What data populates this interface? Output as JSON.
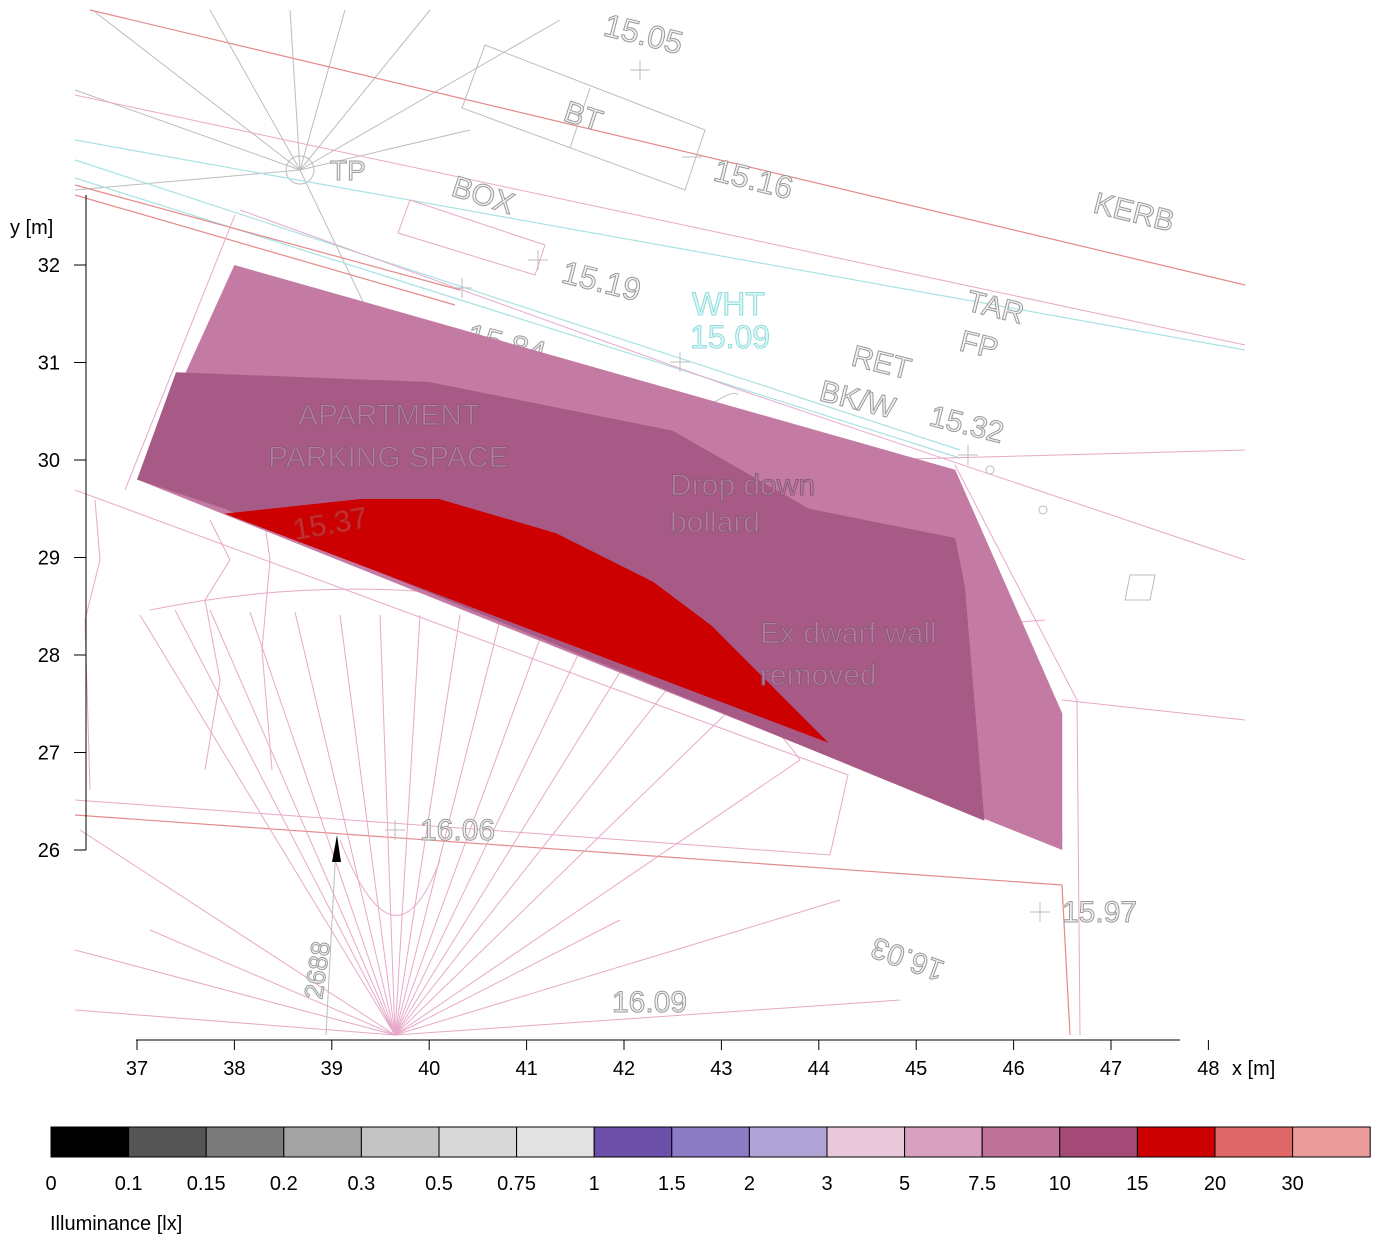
{
  "chart_data": {
    "type": "heatmap",
    "xlabel": "x [m]",
    "ylabel": "y [m]",
    "x_ticks": [
      "37",
      "38",
      "39",
      "40",
      "41",
      "42",
      "43",
      "44",
      "45",
      "46",
      "47",
      "48"
    ],
    "y_ticks": [
      "26",
      "27",
      "28",
      "29",
      "30",
      "31",
      "32"
    ],
    "xlim": [
      37,
      48
    ],
    "ylim": [
      26,
      32
    ],
    "legend": {
      "title": "Illuminance [lx]",
      "thresholds": [
        "0",
        "0.1",
        "0.15",
        "0.2",
        "0.3",
        "0.5",
        "0.75",
        "1",
        "1.5",
        "2",
        "3",
        "5",
        "7.5",
        "10",
        "15",
        "20",
        "30"
      ],
      "colors": [
        "#000000",
        "#555555",
        "#7b7b7b",
        "#a4a4a4",
        "#c4c4c4",
        "#d8d8d8",
        "#e3e3e3",
        "#6b4fa9",
        "#8a7bc4",
        "#b0a4d6",
        "#e9c9d9",
        "#d89fbf",
        "#bf7298",
        "#a54b78",
        "#cc0000",
        "#e06767",
        "#eb9a9a"
      ]
    },
    "regions": [
      {
        "band": "7.5-10",
        "color": "#c47ba3",
        "polygon": [
          [
            38.0,
            32.0
          ],
          [
            45.4,
            29.9
          ],
          [
            46.5,
            27.4
          ],
          [
            46.5,
            26.0
          ],
          [
            37.0,
            29.8
          ]
        ]
      },
      {
        "band": "10-15",
        "color": "#a85a86",
        "polygon": [
          [
            37.4,
            30.9
          ],
          [
            40.0,
            30.8
          ],
          [
            42.5,
            30.3
          ],
          [
            43.9,
            29.5
          ],
          [
            45.4,
            29.2
          ],
          [
            45.5,
            28.7
          ],
          [
            45.7,
            26.3
          ],
          [
            37.9,
            29.5
          ],
          [
            37.0,
            29.8
          ]
        ]
      },
      {
        "band": "15-20",
        "color": "#cc0000",
        "polygon": [
          [
            37.9,
            29.45
          ],
          [
            39.3,
            29.6
          ],
          [
            40.1,
            29.6
          ],
          [
            41.3,
            29.25
          ],
          [
            42.3,
            28.75
          ],
          [
            42.9,
            28.3
          ],
          [
            43.5,
            27.7
          ],
          [
            44.1,
            27.1
          ]
        ]
      }
    ],
    "annotations": [
      "APARTMENT",
      "PARKING SPACE",
      "Drop down",
      "bollard",
      "Ex dwarf wall",
      "removed",
      "15.37"
    ]
  },
  "map_labels": {
    "tp": "TP",
    "box": "BOX",
    "bt": "BT",
    "kerb": "KERB",
    "tar": "TAR",
    "fp": "FP",
    "ret": "RET",
    "bkw": "BK/W",
    "wht": "WHT",
    "wht_val": "15.09",
    "l1505": "15.05",
    "l1516": "15.16",
    "l1519": "15.19",
    "l1584": "15.84",
    "l1532": "15.32",
    "l1606": "16.06",
    "l1597": "15.97",
    "l1609": "16.09",
    "l1603": "16.03",
    "l2688": "2688"
  }
}
